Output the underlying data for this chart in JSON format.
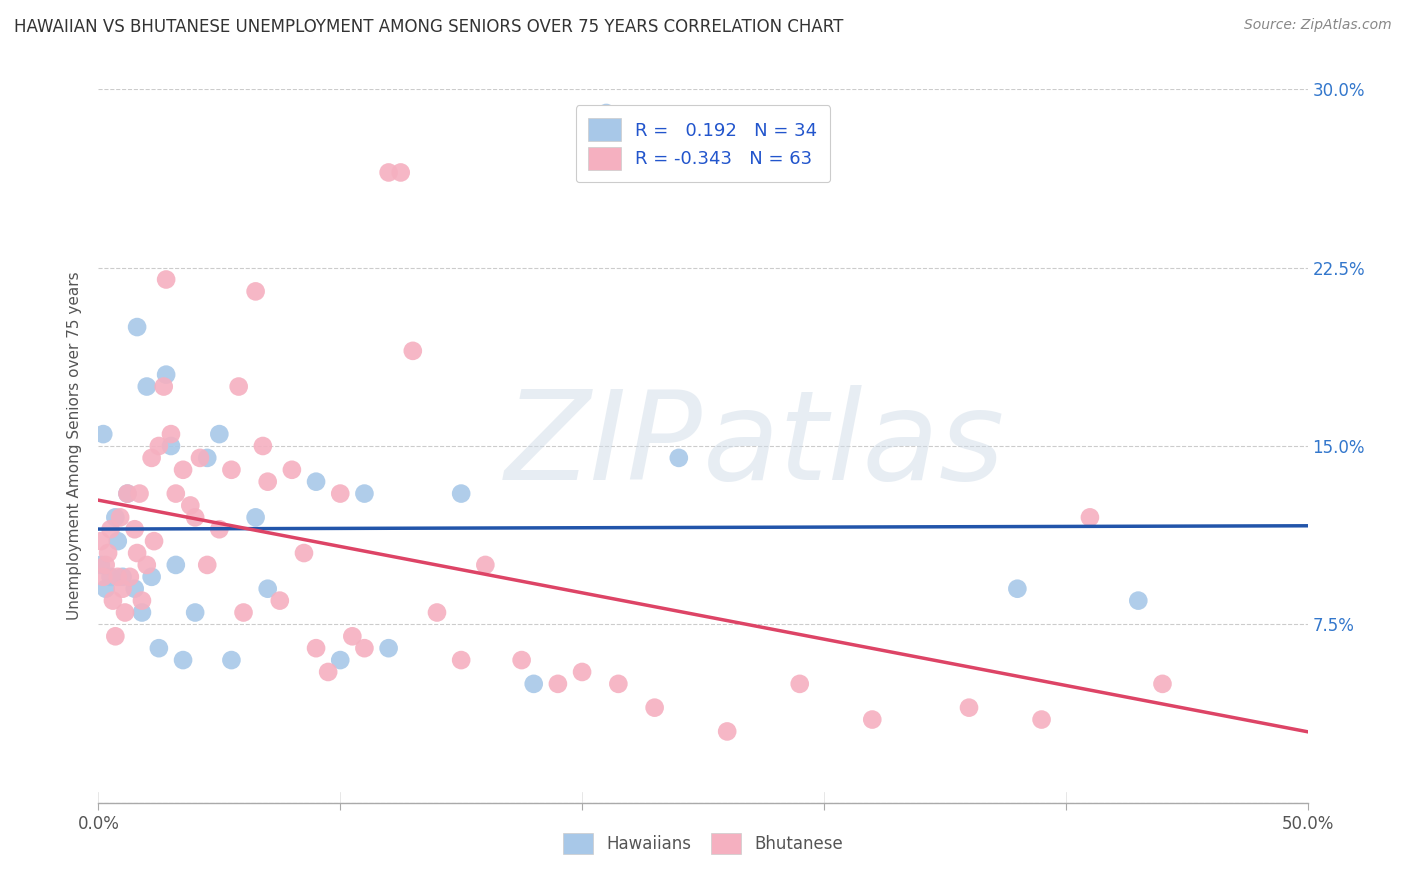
{
  "title": "HAWAIIAN VS BHUTANESE UNEMPLOYMENT AMONG SENIORS OVER 75 YEARS CORRELATION CHART",
  "source": "Source: ZipAtlas.com",
  "ylabel": "Unemployment Among Seniors over 75 years",
  "xlim": [
    0.0,
    0.5
  ],
  "ylim": [
    0.0,
    0.3
  ],
  "xticks": [
    0.0,
    0.1,
    0.2,
    0.3,
    0.4,
    0.5
  ],
  "xticklabels_outer": [
    "0.0%",
    "",
    "",
    "",
    "",
    "50.0%"
  ],
  "yticks": [
    0.0,
    0.075,
    0.15,
    0.225,
    0.3
  ],
  "yticklabels_right": [
    "",
    "7.5%",
    "15.0%",
    "22.5%",
    "30.0%"
  ],
  "hawaiian_color": "#a8c8e8",
  "bhutanese_color": "#f5b0c0",
  "hawaiian_line_color": "#2255aa",
  "bhutanese_line_color": "#dd4466",
  "legend_text_color": "#2255cc",
  "watermark_zip": "ZIP",
  "watermark_atlas": "atlas",
  "hawaiian_R": 0.192,
  "hawaiian_N": 34,
  "bhutanese_R": -0.343,
  "bhutanese_N": 63,
  "hawaiian_x": [
    0.001,
    0.002,
    0.003,
    0.005,
    0.007,
    0.008,
    0.01,
    0.012,
    0.015,
    0.016,
    0.018,
    0.02,
    0.022,
    0.025,
    0.028,
    0.03,
    0.032,
    0.035,
    0.04,
    0.045,
    0.05,
    0.055,
    0.065,
    0.07,
    0.09,
    0.1,
    0.11,
    0.12,
    0.15,
    0.18,
    0.21,
    0.24,
    0.38,
    0.43
  ],
  "hawaiian_y": [
    0.1,
    0.155,
    0.09,
    0.095,
    0.12,
    0.11,
    0.095,
    0.13,
    0.09,
    0.2,
    0.08,
    0.175,
    0.095,
    0.065,
    0.18,
    0.15,
    0.1,
    0.06,
    0.08,
    0.145,
    0.155,
    0.06,
    0.12,
    0.09,
    0.135,
    0.06,
    0.13,
    0.065,
    0.13,
    0.05,
    0.29,
    0.145,
    0.09,
    0.085
  ],
  "bhutanese_x": [
    0.001,
    0.002,
    0.003,
    0.004,
    0.005,
    0.006,
    0.007,
    0.008,
    0.009,
    0.01,
    0.011,
    0.012,
    0.013,
    0.015,
    0.016,
    0.017,
    0.018,
    0.02,
    0.022,
    0.023,
    0.025,
    0.027,
    0.028,
    0.03,
    0.032,
    0.035,
    0.038,
    0.04,
    0.042,
    0.045,
    0.05,
    0.055,
    0.058,
    0.06,
    0.065,
    0.068,
    0.07,
    0.075,
    0.08,
    0.085,
    0.09,
    0.095,
    0.1,
    0.105,
    0.11,
    0.12,
    0.125,
    0.13,
    0.14,
    0.15,
    0.16,
    0.175,
    0.19,
    0.2,
    0.215,
    0.23,
    0.26,
    0.29,
    0.32,
    0.36,
    0.39,
    0.41,
    0.44
  ],
  "bhutanese_y": [
    0.11,
    0.095,
    0.1,
    0.105,
    0.115,
    0.085,
    0.07,
    0.095,
    0.12,
    0.09,
    0.08,
    0.13,
    0.095,
    0.115,
    0.105,
    0.13,
    0.085,
    0.1,
    0.145,
    0.11,
    0.15,
    0.175,
    0.22,
    0.155,
    0.13,
    0.14,
    0.125,
    0.12,
    0.145,
    0.1,
    0.115,
    0.14,
    0.175,
    0.08,
    0.215,
    0.15,
    0.135,
    0.085,
    0.14,
    0.105,
    0.065,
    0.055,
    0.13,
    0.07,
    0.065,
    0.265,
    0.265,
    0.19,
    0.08,
    0.06,
    0.1,
    0.06,
    0.05,
    0.055,
    0.05,
    0.04,
    0.03,
    0.05,
    0.035,
    0.04,
    0.035,
    0.12,
    0.05
  ]
}
